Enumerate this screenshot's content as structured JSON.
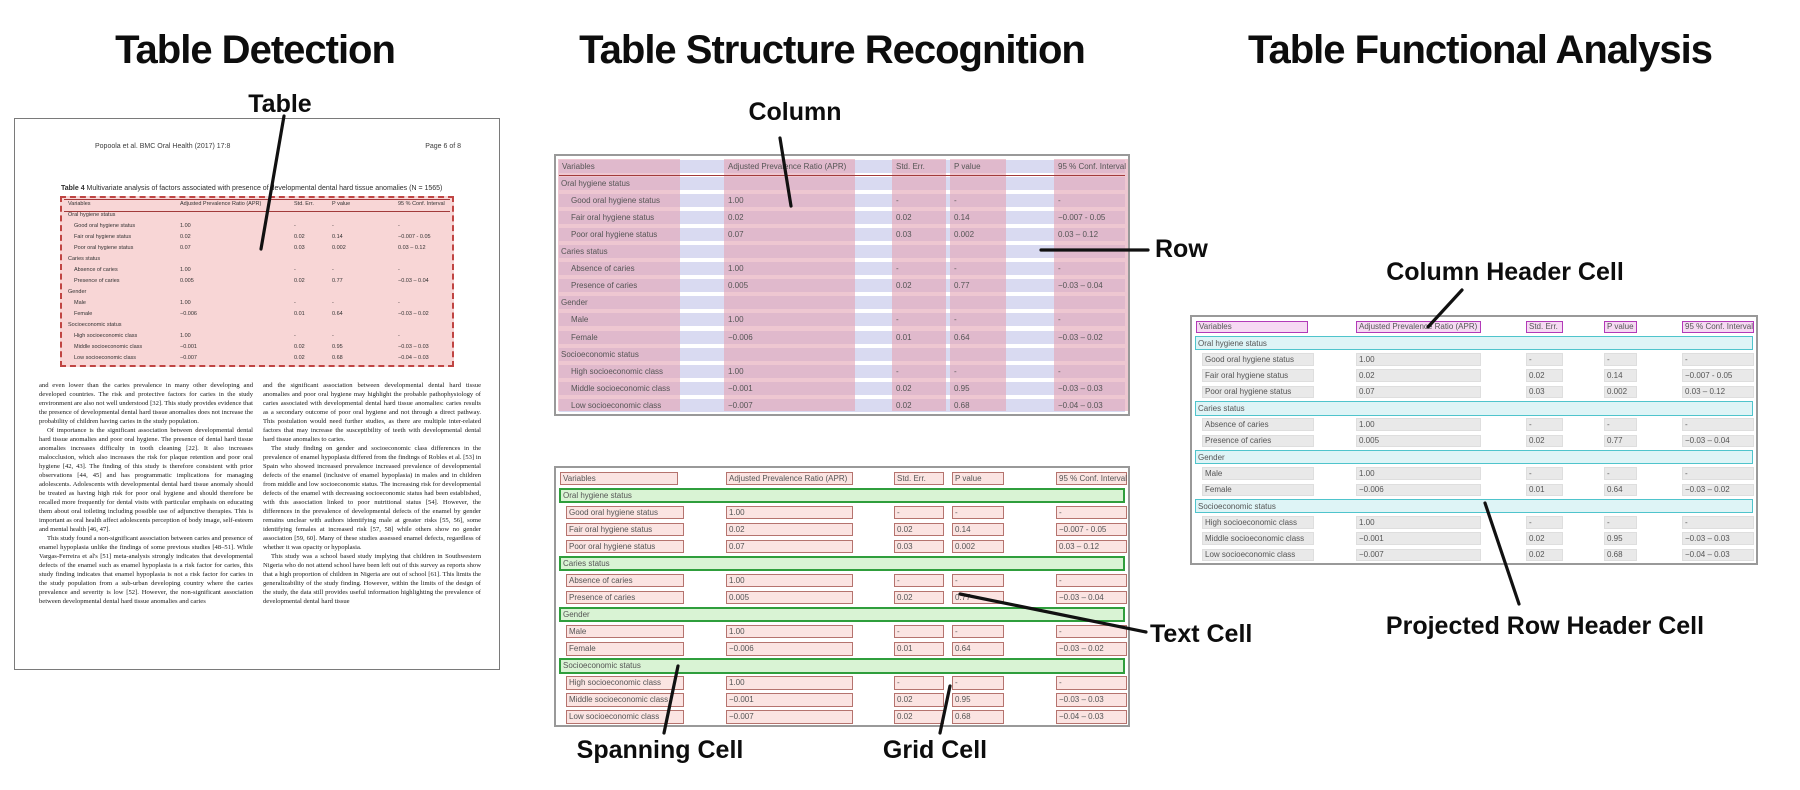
{
  "panels": {
    "detection": {
      "title": "Table Detection",
      "callout_table": "Table",
      "document": {
        "header_left": "Popoola et al. BMC Oral Health  (2017) 17:8",
        "header_right": "Page 6 of 8",
        "caption_bold": "Table 4",
        "caption_rest": " Multivariate analysis of factors associated with presence of developmental dental hard tissue anomalies (N = 1565)",
        "body_col1": [
          "and even lower than the caries prevalence in many other developing and developed countries. The risk and protective factors for caries in the study environment are also not well understood [32]. This study provides evidence that the presence of developmental dental hard tissue anomalies does not increase the probability of children having caries in the study population.",
          "Of importance is the significant association between developmental dental hard tissue anomalies and poor oral hygiene. The presence of dental hard tissue anomalies increases difficulty in tooth cleaning [22]. It also increases malocclusion, which also increases the risk for plaque retention and poor oral hygiene [42, 43]. The finding of this study is therefore consistent with prior observations [44, 45] and has programmatic implications for managing adolescents. Adolescents with developmental dental hard tissue anomaly should be treated as having high risk for poor oral hygiene and should therefore be recalled more frequently for dental visits with particular emphasis on educating them about oral toileting including possible use of adjunctive therapies. This is important as oral health affect adolescents perception of body image, self-esteem and mental health [46, 47].",
          "This study found a non-significant association between caries and presence of enamel hypoplasia unlike the findings of some previous studies [48–51]. While Vargas-Ferreira et al's [51] meta-analysis strongly indicates that developmental defects of the enamel such as enamel hypoplasia is a risk factor for caries, this study finding indicates that enamel hypoplasia is not a risk factor for caries in the study population from a sub-urban developing country where the caries prevalence and severity is low [52]. However, the non-significant association between developmental dental hard tissue anomalies and caries"
        ],
        "body_col2": [
          "and the significant association between developmental dental hard tissue anomalies and poor oral hygiene may highlight the probable pathophysiology of caries associated with developmental dental hard tissue anomalies: caries results as a secondary outcome of poor oral hygiene and not through a direct pathway. This postulation would need further studies, as there are multiple inter-related factors that may increase the susceptibility of teeth with developmental dental hard tissue anomalies to caries.",
          "The study finding on gender and socioeconomic class differences in the prevalence of enamel hypoplasia differed from the findings of Robles et al. [53] in Spain who showed increased prevalence increased prevalence of developmental defects of the enamel (inclusive of enamel hypoplasia) in males and in children from middle and low socioeconomic status. The increasing risk for developmental defects of the enamel with decreasing socioeconomic status had been established, with this association linked to poor nutritional status [54]. However, the differences in the prevalence of developmental defects of the enamel by gender remains unclear with authors identifying male at greater risks [55, 56], some identifying females at increased risk [57, 58] while others show no gender association [59, 60]. Many of these studies assessed enamel defects, regardless of whether it was opacity or hypoplasia.",
          "This study was a school based study implying that children in Southwestern Nigeria who do not attend school have been left out of this survey as reports show that a high proportion of children in Nigeria are out of school [61]. This limits the generalizability of the study finding. However, within the limits of the design of the study, the data still provides useful information highlighting the prevalence of developmental dental hard tissue"
        ]
      }
    },
    "structure": {
      "title": "Table Structure Recognition",
      "callout_column": "Column",
      "callout_row": "Row",
      "callout_spanning": "Spanning Cell",
      "callout_grid": "Grid Cell",
      "callout_text": "Text Cell"
    },
    "functional": {
      "title": "Table Functional Analysis",
      "callout_column_header": "Column Header Cell",
      "callout_projected": "Projected Row Header Cell"
    }
  },
  "table": {
    "columns": [
      "Variables",
      "Adjusted Prevalence Ratio (APR)",
      "Std. Err.",
      "P value",
      "95 % Conf. Interval"
    ],
    "rows": [
      {
        "type": "section",
        "label": "Oral hygiene status"
      },
      {
        "type": "data",
        "cells": [
          "Good oral hygiene status",
          "1.00",
          "-",
          "-",
          "-"
        ]
      },
      {
        "type": "data",
        "cells": [
          "Fair oral hygiene status",
          "0.02",
          "0.02",
          "0.14",
          "−0.007 - 0.05"
        ]
      },
      {
        "type": "data",
        "cells": [
          "Poor oral hygiene status",
          "0.07",
          "0.03",
          "0.002",
          "0.03 – 0.12"
        ]
      },
      {
        "type": "section",
        "label": "Caries status"
      },
      {
        "type": "data",
        "cells": [
          "Absence of caries",
          "1.00",
          "-",
          "-",
          "-"
        ]
      },
      {
        "type": "data",
        "cells": [
          "Presence of caries",
          "0.005",
          "0.02",
          "0.77",
          "−0.03 – 0.04"
        ]
      },
      {
        "type": "section",
        "label": "Gender"
      },
      {
        "type": "data",
        "cells": [
          "Male",
          "1.00",
          "-",
          "-",
          "-"
        ]
      },
      {
        "type": "data",
        "cells": [
          "Female",
          "−0.006",
          "0.01",
          "0.64",
          "−0.03 – 0.02"
        ]
      },
      {
        "type": "section",
        "label": "Socioeconomic status"
      },
      {
        "type": "data",
        "cells": [
          "High socioeconomic class",
          "1.00",
          "-",
          "-",
          "-"
        ]
      },
      {
        "type": "data",
        "cells": [
          "Middle socioeconomic class",
          "−0.001",
          "0.02",
          "0.95",
          "−0.03 – 0.03"
        ]
      },
      {
        "type": "data",
        "cells": [
          "Low socioeconomic class",
          "−0.007",
          "0.02",
          "0.68",
          "−0.04 – 0.03"
        ]
      }
    ]
  },
  "colors": {
    "detection_fill": "#f8d6d6",
    "detection_border": "#c04543",
    "row_band": "#d9daf1",
    "column_band": "rgba(228,164,180,0.62)",
    "text_cell_fill": "#fbe4e2",
    "text_cell_border": "#b5736e",
    "spanning_fill": "#d9f3d4",
    "spanning_border": "#2f9e3c",
    "column_header_fill": "#f6d9f3",
    "column_header_border": "#b23ab8",
    "projected_fill": "#def4f6",
    "projected_border": "#4fc4cc",
    "grid_cell_fill": "#e9e9e9",
    "table_border": "#999999",
    "caption_rule": "#a23b3b"
  }
}
